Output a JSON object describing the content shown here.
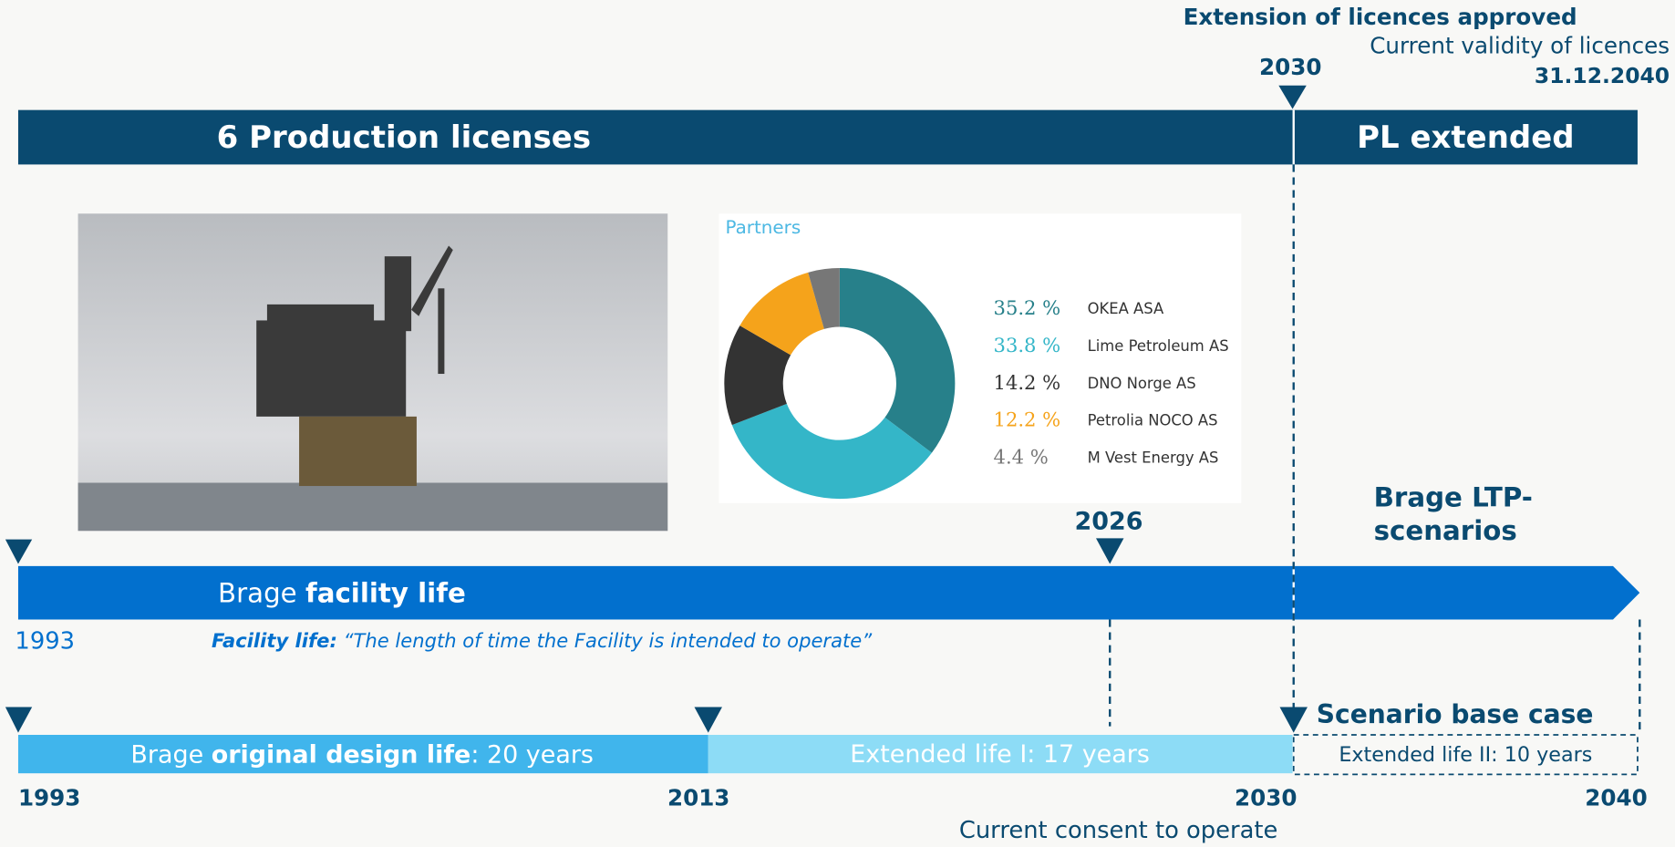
{
  "header": {
    "approved": "Extension of licences approved",
    "validity": "Current validity of licences",
    "validity_date": "31.12.2040",
    "year": "2030"
  },
  "license_bar": {
    "left": "6 Production licenses",
    "right": "PL extended"
  },
  "chart_data": {
    "type": "pie",
    "title": "Partners",
    "categories": [
      "OKEA ASA",
      "Lime Petroleum AS",
      "DNO Norge AS",
      "Petrolia NOCO AS",
      "M Vest Energy AS"
    ],
    "values": [
      35.2,
      33.8,
      14.2,
      12.2,
      4.4
    ],
    "value_labels": [
      "35.2 %",
      "33.8 %",
      "14.2 %",
      "12.2 %",
      "4.4 %"
    ],
    "colors": [
      "#27808a",
      "#34b6c8",
      "#333333",
      "#f5a31b",
      "#777777"
    ]
  },
  "scenarios": {
    "lines": [
      "Brage LTP-",
      "scenarios"
    ]
  },
  "facility": {
    "marker_year": "2026",
    "label": [
      "Brage ",
      "facility life"
    ],
    "start": "1993",
    "note": [
      "Facility life:",
      " “The length of time the Facility is intended to operate”"
    ]
  },
  "design": {
    "original": [
      "Brage ",
      "original design life",
      ": 20 years"
    ],
    "extended_1": "Extended life I: 17 years",
    "base_case": "Scenario base case",
    "extended_2": "Extended life II: 10 years",
    "years": [
      "1993",
      "2013",
      "2030",
      "2040"
    ],
    "consent": "Current consent to operate"
  }
}
